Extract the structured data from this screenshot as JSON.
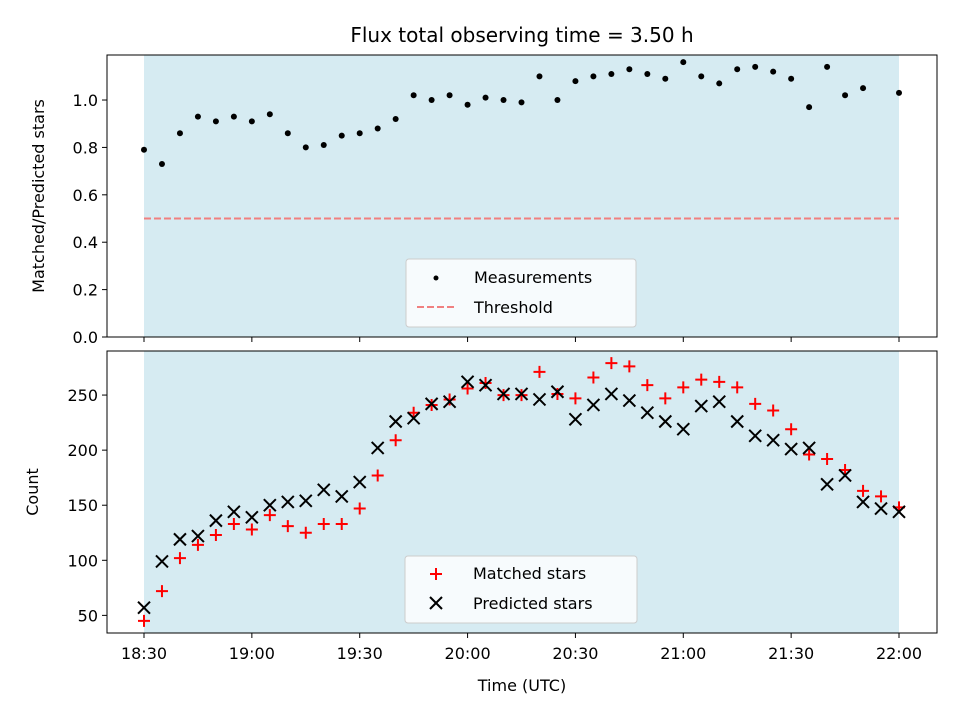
{
  "chart_data": [
    {
      "type": "scatter",
      "title": "Flux total observing time = 3.50 h",
      "xlabel": "",
      "ylabel": "Matched/Predicted stars",
      "xlim": [
        "18:30",
        "22:00"
      ],
      "ylim": [
        0,
        1.19
      ],
      "yticks": [
        "0.0",
        "0.2",
        "0.4",
        "0.6",
        "0.8",
        "1.0"
      ],
      "grid": false,
      "legend": "bottom-center",
      "observing_window": {
        "start": "18:30",
        "end": "22:00",
        "color": "#add8e6"
      },
      "series": [
        {
          "name": "Measurements",
          "color": "#000000",
          "marker": "dot",
          "x": [
            "18:30",
            "18:35",
            "18:40",
            "18:45",
            "18:50",
            "18:55",
            "19:00",
            "19:05",
            "19:10",
            "19:15",
            "19:20",
            "19:25",
            "19:30",
            "19:35",
            "19:40",
            "19:45",
            "19:50",
            "19:55",
            "20:00",
            "20:05",
            "20:10",
            "20:15",
            "20:20",
            "20:25",
            "20:30",
            "20:35",
            "20:40",
            "20:45",
            "20:50",
            "20:55",
            "21:00",
            "21:05",
            "21:10",
            "21:15",
            "21:20",
            "21:25",
            "21:30",
            "21:35",
            "21:40",
            "21:45",
            "21:50",
            "22:00"
          ],
          "y": [
            0.79,
            0.73,
            0.86,
            0.93,
            0.91,
            0.93,
            0.91,
            0.94,
            0.86,
            0.8,
            0.81,
            0.85,
            0.86,
            0.88,
            0.92,
            1.02,
            1.0,
            1.02,
            0.98,
            1.01,
            1.0,
            0.99,
            1.1,
            1.0,
            1.08,
            1.1,
            1.11,
            1.13,
            1.11,
            1.09,
            1.16,
            1.1,
            1.07,
            1.13,
            1.14,
            1.12,
            1.09,
            0.97,
            1.14,
            1.02,
            1.05,
            1.03
          ]
        },
        {
          "name": "Threshold",
          "color": "#f08080",
          "style": "dashed",
          "x": [
            "18:30",
            "22:00"
          ],
          "y": [
            0.5,
            0.5
          ]
        }
      ]
    },
    {
      "type": "scatter",
      "title": "",
      "xlabel": "Time (UTC)",
      "ylabel": "Count",
      "xlim": [
        "18:30",
        "22:00"
      ],
      "ylim": [
        34,
        290
      ],
      "xticks": [
        "18:30",
        "19:00",
        "19:30",
        "20:00",
        "20:30",
        "21:00",
        "21:30",
        "22:00"
      ],
      "yticks": [
        "50",
        "100",
        "150",
        "200",
        "250"
      ],
      "grid": false,
      "legend": "bottom-center",
      "observing_window": {
        "start": "18:30",
        "end": "22:00",
        "color": "#add8e6"
      },
      "series": [
        {
          "name": "Matched stars",
          "color": "#ff0000",
          "marker": "plus",
          "x": [
            "18:30",
            "18:35",
            "18:40",
            "18:45",
            "18:50",
            "18:55",
            "19:00",
            "19:05",
            "19:10",
            "19:15",
            "19:20",
            "19:25",
            "19:30",
            "19:35",
            "19:40",
            "19:45",
            "19:50",
            "19:55",
            "20:00",
            "20:05",
            "20:10",
            "20:15",
            "20:20",
            "20:25",
            "20:30",
            "20:35",
            "20:40",
            "20:45",
            "20:50",
            "20:55",
            "21:00",
            "21:05",
            "21:10",
            "21:15",
            "21:20",
            "21:25",
            "21:30",
            "21:35",
            "21:40",
            "21:45",
            "21:50",
            "21:55",
            "22:00"
          ],
          "y": [
            45,
            72,
            102,
            114,
            123,
            133,
            128,
            141,
            131,
            125,
            133,
            133,
            147,
            177,
            209,
            234,
            241,
            246,
            256,
            261,
            250,
            250,
            271,
            251,
            247,
            266,
            279,
            276,
            259,
            247,
            257,
            264,
            262,
            257,
            242,
            236,
            219,
            196,
            192,
            182,
            163,
            158,
            148
          ]
        },
        {
          "name": "Predicted stars",
          "color": "#000000",
          "marker": "x",
          "x": [
            "18:30",
            "18:35",
            "18:40",
            "18:45",
            "18:50",
            "18:55",
            "19:00",
            "19:05",
            "19:10",
            "19:15",
            "19:20",
            "19:25",
            "19:30",
            "19:35",
            "19:40",
            "19:45",
            "19:50",
            "19:55",
            "20:00",
            "20:05",
            "20:10",
            "20:15",
            "20:20",
            "20:25",
            "20:30",
            "20:35",
            "20:40",
            "20:45",
            "20:50",
            "20:55",
            "21:00",
            "21:05",
            "21:10",
            "21:15",
            "21:20",
            "21:25",
            "21:30",
            "21:35",
            "21:40",
            "21:45",
            "21:50",
            "21:55",
            "22:00"
          ],
          "y": [
            57,
            99,
            119,
            122,
            136,
            144,
            139,
            150,
            153,
            154,
            164,
            158,
            171,
            202,
            226,
            229,
            242,
            244,
            262,
            259,
            251,
            251,
            246,
            253,
            228,
            241,
            251,
            245,
            234,
            226,
            219,
            240,
            244,
            226,
            213,
            209,
            201,
            202,
            169,
            177,
            153,
            147,
            144
          ]
        }
      ]
    }
  ]
}
